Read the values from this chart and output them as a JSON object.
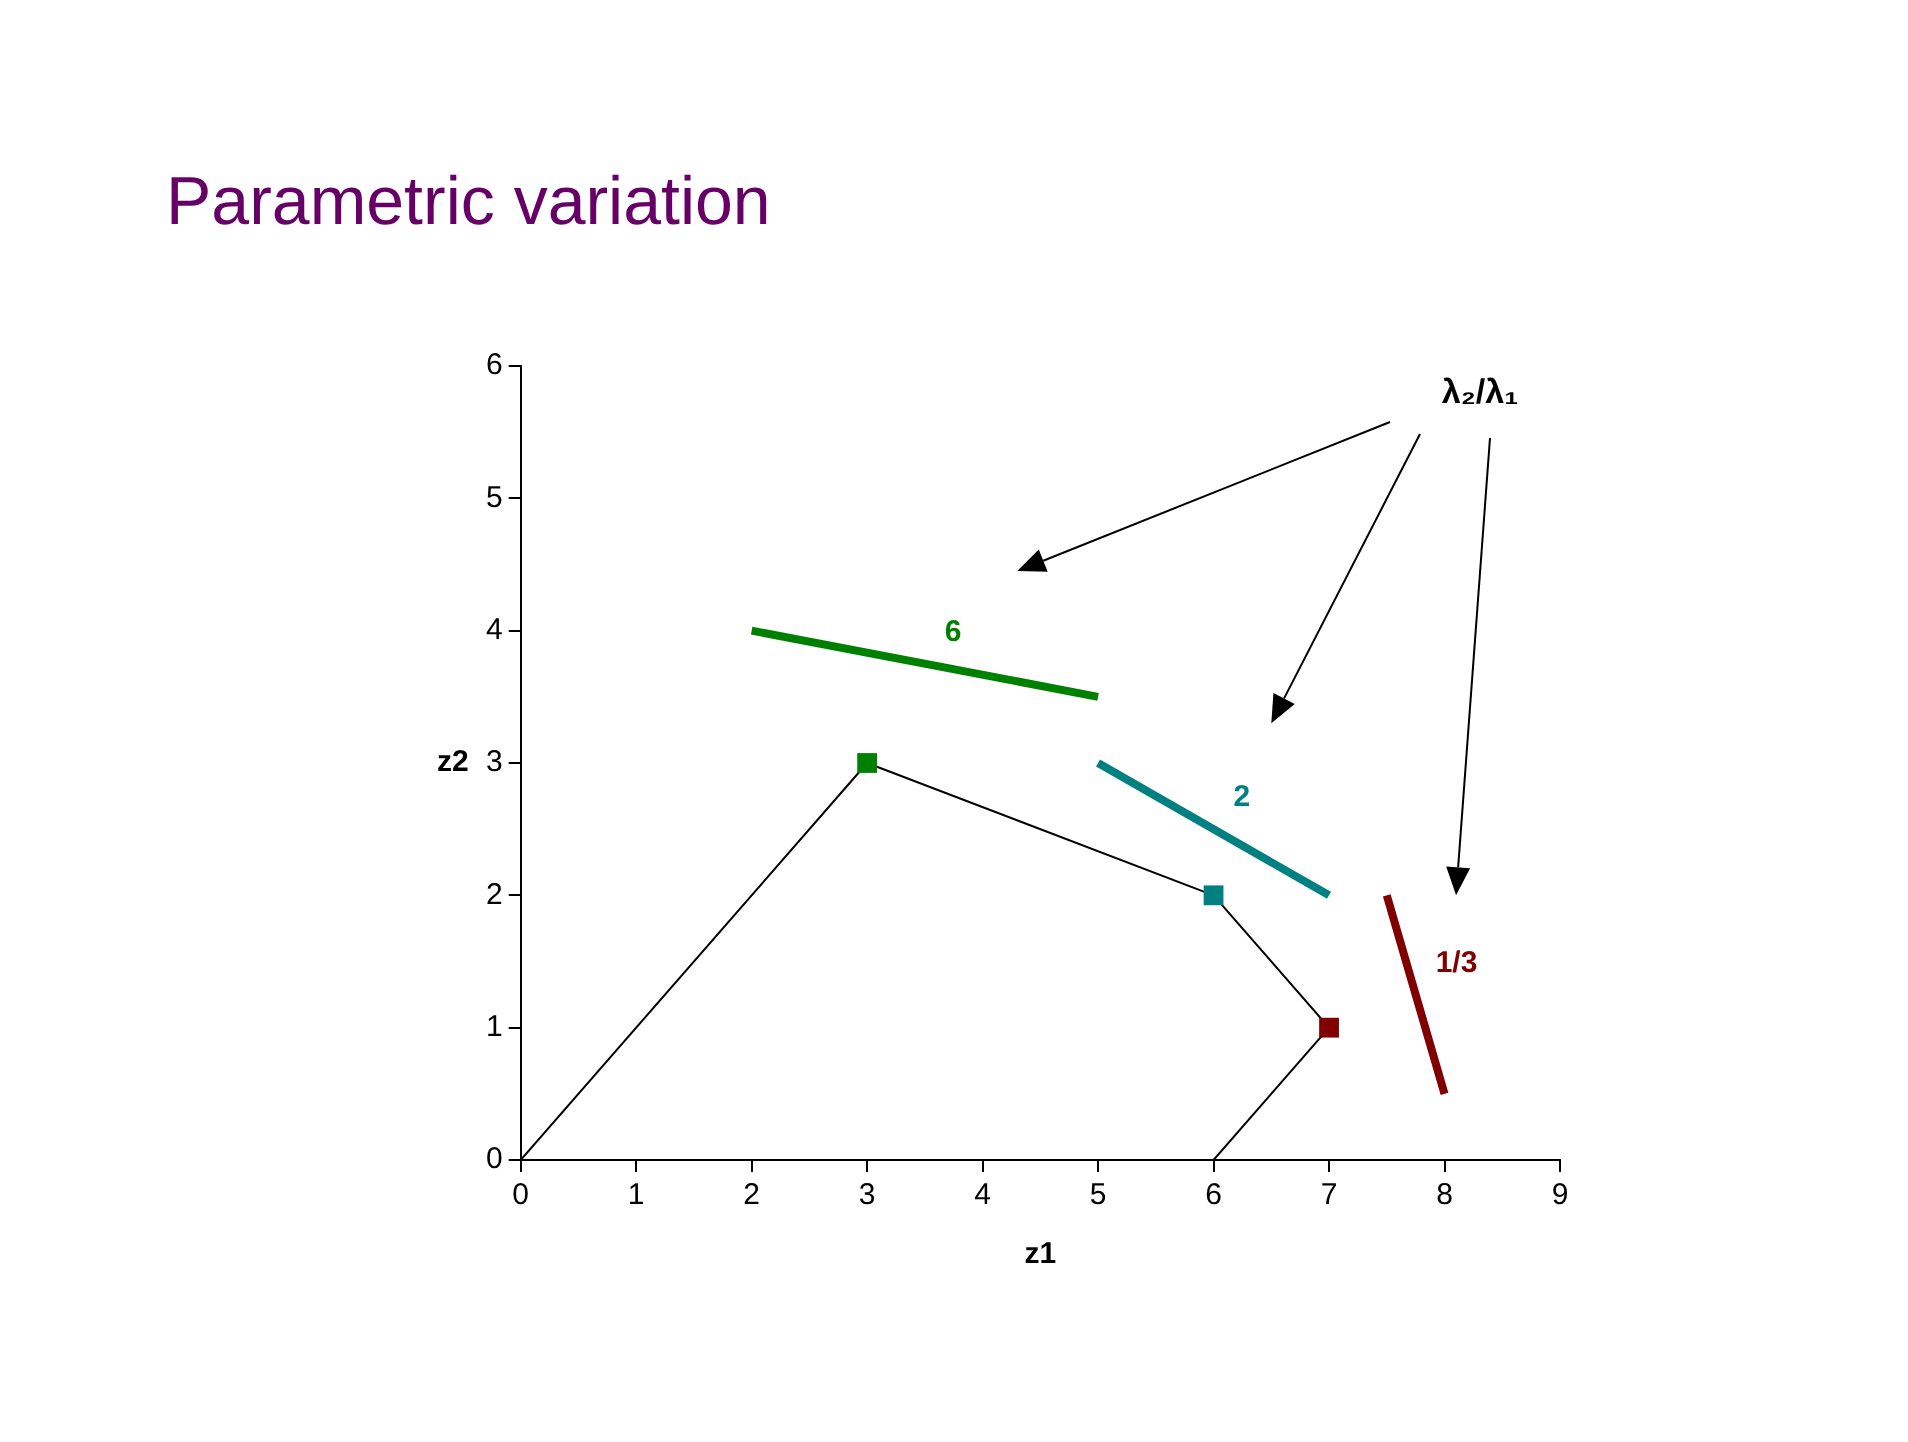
{
  "chart_data": {
    "type": "line",
    "title": "Parametric variation",
    "xlabel": "z1",
    "ylabel": "z2",
    "annotations": [
      "λ₂/λ₁"
    ],
    "xlim": [
      0,
      9
    ],
    "xticks": [
      0,
      1,
      2,
      3,
      4,
      5,
      6,
      7,
      8,
      9
    ],
    "ylim": [
      0,
      6
    ],
    "yticks": [
      0,
      1,
      2,
      3,
      4,
      5,
      6
    ],
    "grid": false,
    "legend": false,
    "series": [
      {
        "color": "#000000",
        "x": [
          0,
          3,
          6,
          7,
          6
        ],
        "values": [
          0,
          3,
          2,
          1,
          0
        ],
        "marker": "none"
      },
      {
        "type": "scatter",
        "colors": [
          "#008000",
          "#008080",
          "#800000"
        ],
        "x": [
          3,
          6,
          7
        ],
        "values": [
          3,
          2,
          1
        ],
        "marker": "square"
      },
      {
        "name": "6",
        "color": "#008000",
        "x": [
          2,
          5
        ],
        "values": [
          4,
          3.5
        ],
        "marker": "none"
      },
      {
        "name": "2",
        "color": "#008080",
        "x": [
          5,
          7
        ],
        "values": [
          3,
          2
        ],
        "marker": "none"
      },
      {
        "name": "1/3",
        "color": "#800000",
        "x": [
          7.5,
          8
        ],
        "values": [
          2,
          0.5
        ],
        "marker": "none"
      }
    ]
  }
}
